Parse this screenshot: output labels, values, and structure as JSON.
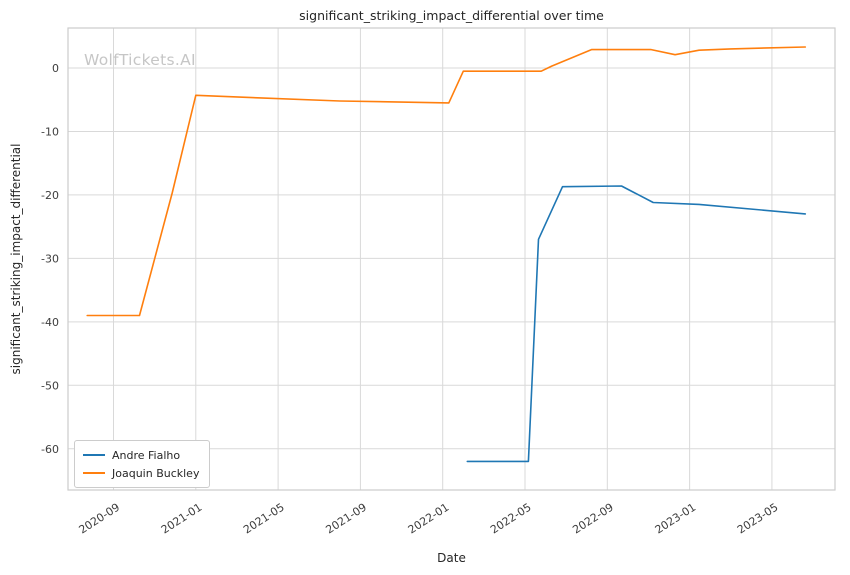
{
  "chart_data": {
    "type": "line",
    "title": "significant_striking_impact_differential over time",
    "xlabel": "Date",
    "ylabel": "significant_striking_impact_differential",
    "watermark": "WolfTickets.AI",
    "grid": true,
    "legend_position": "lower left",
    "x_tick_labels": [
      "2020-09",
      "2021-01",
      "2021-05",
      "2021-09",
      "2022-01",
      "2022-05",
      "2022-09",
      "2023-01",
      "2023-05"
    ],
    "y_ticks": [
      0,
      -10,
      -20,
      -30,
      -40,
      -50,
      -60
    ],
    "x_domain": [
      "2020-06-25",
      "2023-08-03"
    ],
    "y_domain": [
      -66.5,
      6.3
    ],
    "colors": {
      "andre_fialho": "#1f77b4",
      "joaquin_buckley": "#ff7f0e",
      "grid": "#d9d9d9",
      "spine": "#cccccc"
    },
    "series": [
      {
        "name": "Andre Fialho",
        "color": "#1f77b4",
        "points": [
          [
            "2022-02-07",
            -62
          ],
          [
            "2022-05-06",
            -62
          ],
          [
            "2022-05-21",
            -27
          ],
          [
            "2022-06-26",
            -18.7
          ],
          [
            "2022-09-22",
            -18.6
          ],
          [
            "2022-11-08",
            -21.2
          ],
          [
            "2023-01-15",
            -21.5
          ],
          [
            "2023-06-20",
            -23
          ]
        ]
      },
      {
        "name": "Joaquin Buckley",
        "color": "#ff7f0e",
        "points": [
          [
            "2020-07-23",
            -39
          ],
          [
            "2020-10-09",
            -39
          ],
          [
            "2020-11-27",
            -19.7
          ],
          [
            "2021-01-01",
            -4.3
          ],
          [
            "2021-04-01",
            -4.7
          ],
          [
            "2021-08-01",
            -5.2
          ],
          [
            "2022-01-10",
            -5.5
          ],
          [
            "2022-02-01",
            -0.5
          ],
          [
            "2022-05-25",
            -0.5
          ],
          [
            "2022-06-10",
            0.3
          ],
          [
            "2022-08-08",
            2.9
          ],
          [
            "2022-11-05",
            2.9
          ],
          [
            "2022-12-10",
            2.1
          ],
          [
            "2023-01-15",
            2.8
          ],
          [
            "2023-03-01",
            3.0
          ],
          [
            "2023-06-20",
            3.3
          ]
        ]
      }
    ]
  }
}
